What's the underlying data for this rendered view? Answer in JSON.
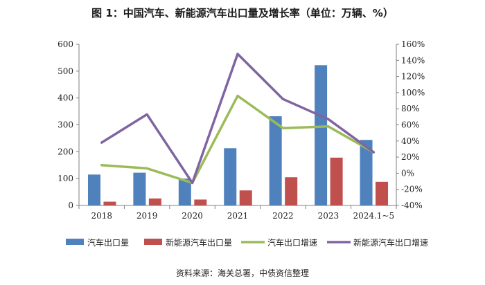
{
  "title": "图 1：中国汽车、新能源汽车出口量及增长率（单位：万辆、%）",
  "source": "资料来源：海关总署，中债资信整理",
  "chart_data": {
    "type": "bar",
    "categories": [
      "2018",
      "2019",
      "2020",
      "2021",
      "2022",
      "2023",
      "2024.1~5"
    ],
    "left_axis": {
      "min": 0,
      "max": 600,
      "step": 100,
      "ticks": [
        "0",
        "100",
        "200",
        "300",
        "400",
        "500",
        "600"
      ]
    },
    "right_axis": {
      "min": -40,
      "max": 160,
      "step": 20,
      "ticks": [
        "-40%",
        "-20%",
        "0%",
        "20%",
        "40%",
        "60%",
        "80%",
        "100%",
        "120%",
        "140%",
        "160%"
      ]
    },
    "bar_series": [
      {
        "name": "汽车出口量",
        "color": "#4f81bd",
        "values": [
          115,
          122,
          100,
          213,
          332,
          522,
          244
        ]
      },
      {
        "name": "新能源汽车出口量",
        "color": "#c0504d",
        "values": [
          14,
          26,
          22,
          56,
          105,
          178,
          88
        ]
      }
    ],
    "line_series": [
      {
        "name": "汽车出口增速",
        "color": "#9bbb59",
        "values": [
          10,
          6,
          -12,
          96,
          56,
          58,
          26
        ]
      },
      {
        "name": "新能源汽车出口增速",
        "color": "#8064a2",
        "values": [
          38,
          73,
          -12,
          148,
          92,
          67,
          26
        ]
      }
    ],
    "legend": "bottom",
    "grid": false
  }
}
